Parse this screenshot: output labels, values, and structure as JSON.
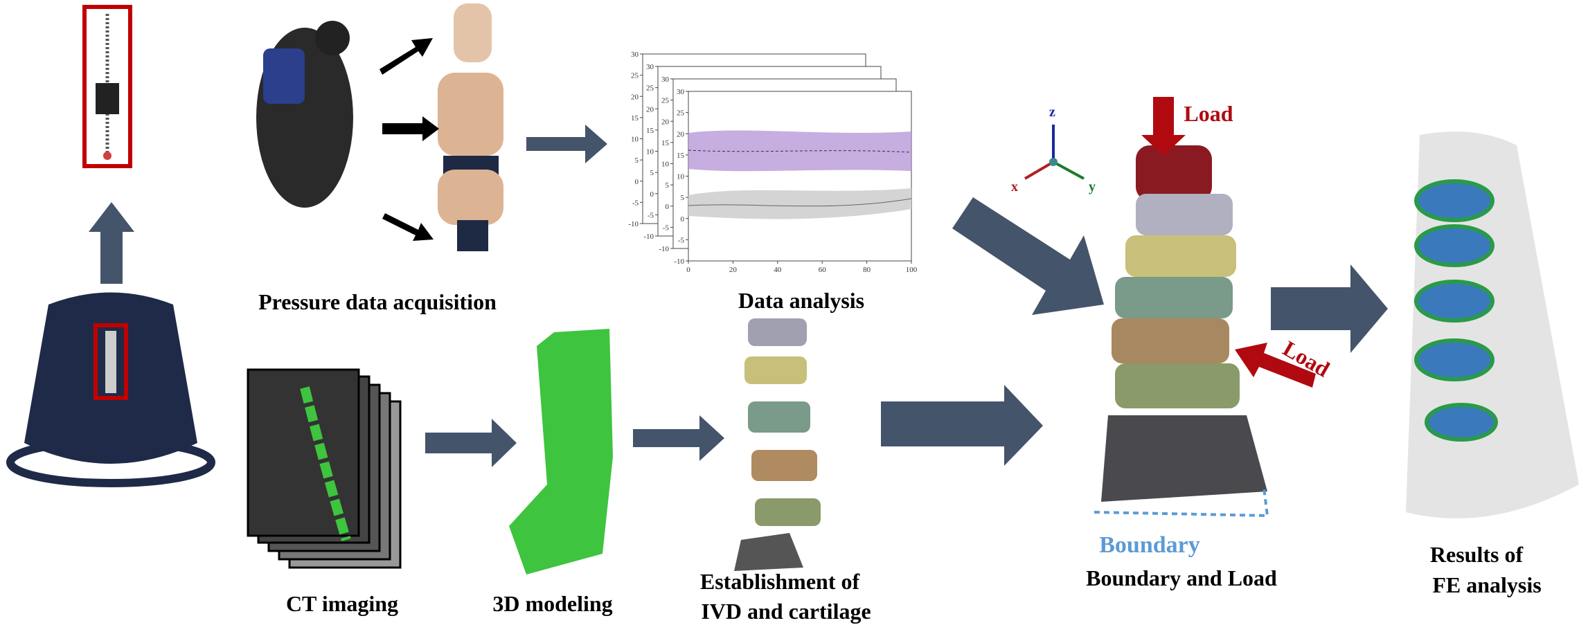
{
  "labels": {
    "pressure": "Pressure data acquisition",
    "analysis": "Data analysis",
    "ct": "CT imaging",
    "modeling": "3D modeling",
    "establishment": [
      "Establishment of",
      "IVD and cartilage"
    ],
    "boundary_and_load": "Boundary and Load",
    "load_top": "Load",
    "load_side": "Load",
    "boundary": "Boundary",
    "results": [
      "Results of",
      "FE analysis"
    ]
  },
  "axes_triad": {
    "x": "x",
    "y": "y",
    "z": "z"
  },
  "plot": {
    "panels": [
      {
        "yticks": [
          30,
          25,
          20,
          15,
          10,
          5,
          0,
          -5,
          -10
        ]
      },
      {
        "yticks": [
          30,
          25,
          20,
          15,
          10,
          5,
          0,
          -5,
          -10
        ]
      },
      {
        "yticks": [
          30,
          25,
          20,
          15,
          10,
          5,
          0,
          -5,
          -10
        ]
      },
      {
        "yticks": [
          30,
          25,
          20,
          15,
          10,
          5,
          0,
          -5,
          -10
        ]
      }
    ],
    "ylim": [
      -10,
      30
    ],
    "xticks": [
      0,
      20,
      40,
      60,
      80,
      100
    ],
    "xlim": [
      0,
      100
    ]
  }
}
